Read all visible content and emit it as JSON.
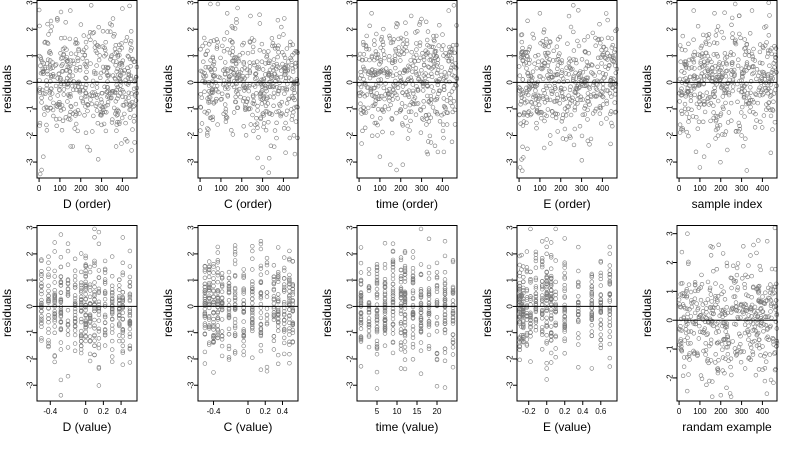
{
  "figure": {
    "point_color": "#7a7a7a",
    "line_color": "#000000"
  },
  "chart_data": [
    {
      "type": "scatter",
      "xlabel": "D (order)",
      "ylabel": "residuals",
      "xlim": [
        -10,
        470
      ],
      "ylim": [
        -3.6,
        3.1
      ],
      "xticks": [
        0,
        100,
        200,
        300,
        400
      ],
      "yticks": [
        -3,
        -2,
        -1,
        0,
        1,
        2,
        3
      ],
      "n": 470,
      "xkind": "order",
      "grid": false,
      "points_sample": [
        [
          12,
          -3.3
        ],
        [
          20,
          -2.8
        ],
        [
          45,
          1.8
        ],
        [
          60,
          2.1
        ],
        [
          88,
          2.4
        ],
        [
          110,
          -1.8
        ],
        [
          150,
          2.7
        ],
        [
          210,
          -0.7
        ],
        [
          250,
          2.9
        ],
        [
          300,
          -1.6
        ],
        [
          355,
          2.4
        ],
        [
          400,
          -0.3
        ],
        [
          440,
          1.2
        ],
        [
          460,
          -0.5
        ]
      ]
    },
    {
      "type": "scatter",
      "xlabel": "C (order)",
      "ylabel": "residuals",
      "xlim": [
        -10,
        470
      ],
      "ylim": [
        -3.6,
        3.1
      ],
      "xticks": [
        0,
        100,
        200,
        300,
        400
      ],
      "yticks": [
        -3,
        -2,
        -1,
        0,
        1,
        2,
        3
      ],
      "n": 470,
      "xkind": "order",
      "grid": false,
      "points_sample": [
        [
          35,
          -2.0
        ],
        [
          60,
          -1.3
        ],
        [
          130,
          2.6
        ],
        [
          150,
          -1.8
        ],
        [
          180,
          2.8
        ],
        [
          265,
          -1.6
        ],
        [
          300,
          -3.2
        ],
        [
          330,
          -3.4
        ],
        [
          400,
          1.8
        ],
        [
          440,
          -1.4
        ],
        [
          455,
          -2.7
        ]
      ]
    },
    {
      "type": "scatter",
      "xlabel": "time (order)",
      "ylabel": "residuals",
      "xlim": [
        -10,
        470
      ],
      "ylim": [
        -3.6,
        3.1
      ],
      "xticks": [
        0,
        100,
        200,
        300,
        400
      ],
      "yticks": [
        -3,
        -2,
        -1,
        0,
        1,
        2,
        3
      ],
      "n": 470,
      "xkind": "order",
      "grid": false,
      "points_sample": [
        [
          100,
          -2.8
        ],
        [
          150,
          -3.1
        ],
        [
          180,
          -3.3
        ],
        [
          210,
          -3.1
        ],
        [
          330,
          -2.7
        ],
        [
          430,
          2.7
        ],
        [
          455,
          2.9
        ],
        [
          60,
          2.6
        ],
        [
          250,
          2.5
        ]
      ]
    },
    {
      "type": "scatter",
      "xlabel": "E (order)",
      "ylabel": "residuals",
      "xlim": [
        -10,
        470
      ],
      "ylim": [
        -3.6,
        3.1
      ],
      "xticks": [
        0,
        100,
        200,
        300,
        400
      ],
      "yticks": [
        -3,
        -2,
        -1,
        0,
        1,
        2,
        3
      ],
      "n": 470,
      "xkind": "order",
      "grid": false,
      "points_sample": [
        [
          5,
          -3.2
        ],
        [
          12,
          -2.9
        ],
        [
          40,
          -2.5
        ],
        [
          100,
          2.6
        ],
        [
          150,
          -2.3
        ],
        [
          200,
          -0.3
        ],
        [
          260,
          2.9
        ],
        [
          330,
          -2.2
        ],
        [
          420,
          -0.7
        ],
        [
          450,
          1.4
        ]
      ]
    },
    {
      "type": "scatter",
      "xlabel": "sample index",
      "ylabel": "residuals",
      "xlim": [
        -10,
        470
      ],
      "ylim": [
        -3.6,
        3.1
      ],
      "xticks": [
        0,
        100,
        200,
        300,
        400
      ],
      "yticks": [
        -3,
        -2,
        -1,
        0,
        1,
        2,
        3
      ],
      "n": 470,
      "xkind": "order",
      "grid": false,
      "points_sample": [
        [
          70,
          2.7
        ],
        [
          100,
          -3.2
        ],
        [
          120,
          -2.8
        ],
        [
          170,
          2.6
        ],
        [
          300,
          -2.0
        ],
        [
          350,
          2.7
        ],
        [
          430,
          3.0
        ],
        [
          460,
          -1.5
        ]
      ]
    },
    {
      "type": "scatter",
      "xlabel": "D (value)",
      "ylabel": "residuals",
      "xlim": [
        -0.55,
        0.58
      ],
      "ylim": [
        -3.6,
        3.1
      ],
      "xticks": [
        -0.4,
        0,
        0.2,
        0.4
      ],
      "yticks": [
        -3,
        -2,
        -1,
        0,
        1,
        2,
        3
      ],
      "n": 470,
      "xkind": "values",
      "xvalues": [
        -0.5,
        -0.42,
        -0.35,
        -0.28,
        -0.2,
        -0.12,
        -0.05,
        0.0,
        0.05,
        0.1,
        0.15,
        0.22,
        0.3,
        0.38,
        0.42,
        0.5
      ],
      "grid": false
    },
    {
      "type": "scatter",
      "xlabel": "C (value)",
      "ylabel": "residuals",
      "xlim": [
        -0.58,
        0.58
      ],
      "ylim": [
        -3.6,
        3.1
      ],
      "xticks": [
        -0.4,
        0,
        0.2,
        0.4
      ],
      "yticks": [
        -3,
        -2,
        -1,
        0,
        1,
        2,
        3
      ],
      "n": 470,
      "xkind": "values",
      "xvalues": [
        -0.5,
        -0.45,
        -0.4,
        -0.35,
        -0.3,
        -0.22,
        -0.15,
        -0.05,
        0.05,
        0.15,
        0.22,
        0.3,
        0.35,
        0.42,
        0.48,
        0.52
      ],
      "grid": false
    },
    {
      "type": "scatter",
      "xlabel": "time (value)",
      "ylabel": "residuals",
      "xlim": [
        0,
        25
      ],
      "ylim": [
        -3.6,
        3.1
      ],
      "xticks": [
        5,
        10,
        15,
        20
      ],
      "yticks": [
        -3,
        -2,
        -1,
        0,
        1,
        2,
        3
      ],
      "n": 470,
      "xkind": "values",
      "xvalues": [
        1,
        3,
        5,
        7,
        9,
        11,
        12,
        14,
        16,
        18,
        20,
        22,
        24
      ],
      "grid": false
    },
    {
      "type": "scatter",
      "xlabel": "E (value)",
      "ylabel": "residuals",
      "xlim": [
        -0.33,
        0.78
      ],
      "ylim": [
        -3.6,
        3.1
      ],
      "xticks": [
        -0.2,
        0,
        0.2,
        0.4,
        0.6
      ],
      "yticks": [
        -3,
        -2,
        -1,
        0,
        1,
        2,
        3
      ],
      "n": 470,
      "xkind": "values",
      "xvalues": [
        -0.3,
        -0.28,
        -0.26,
        -0.22,
        -0.18,
        -0.12,
        -0.05,
        0.0,
        0.05,
        0.1,
        0.2,
        0.35,
        0.5,
        0.6,
        0.7
      ],
      "grid": false
    },
    {
      "type": "scatter",
      "xlabel": "randam example",
      "ylabel": "residuals",
      "xlim": [
        -10,
        470
      ],
      "ylim": [
        -2.8,
        3.3
      ],
      "xticks": [
        0,
        100,
        200,
        300,
        400
      ],
      "yticks": [
        -2,
        -1,
        0,
        1,
        2,
        3
      ],
      "n": 470,
      "xkind": "order",
      "grid": false,
      "points_sample": [
        [
          40,
          3.0
        ],
        [
          200,
          -2.6
        ],
        [
          460,
          3.2
        ]
      ]
    }
  ]
}
